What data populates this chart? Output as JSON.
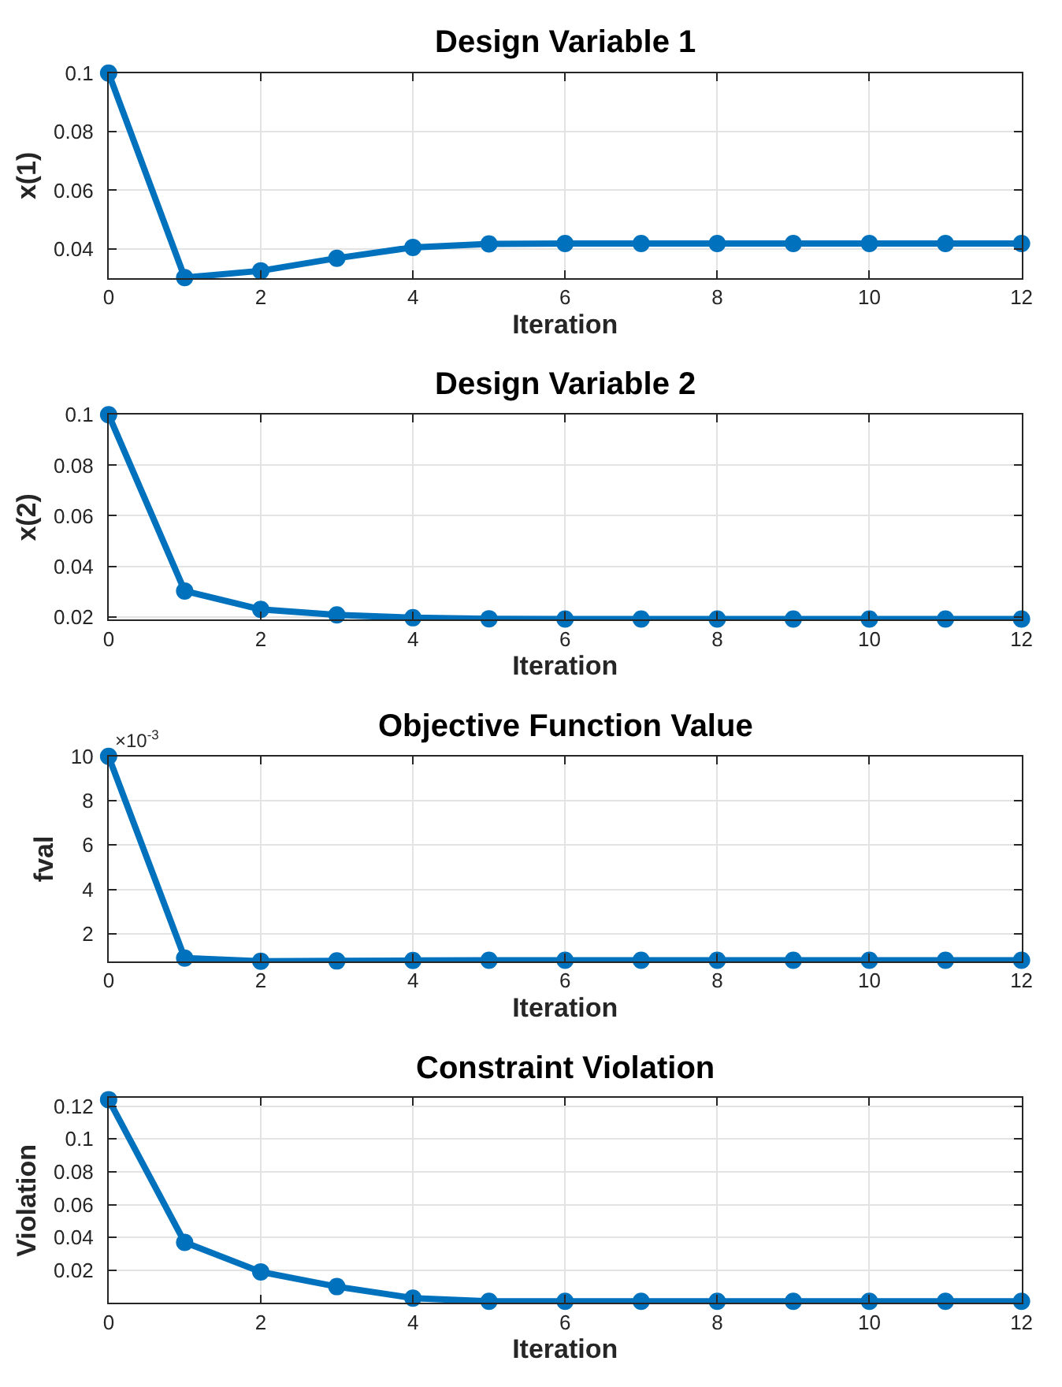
{
  "chart_data": [
    {
      "type": "line",
      "title": "Design Variable 1",
      "xlabel": "Iteration",
      "ylabel": "x(1)",
      "x": [
        0,
        1,
        2,
        3,
        4,
        5,
        6,
        7,
        8,
        9,
        10,
        11,
        12
      ],
      "color": "#0072bd",
      "marker": "circle",
      "grid": true,
      "values": [
        0.1,
        0.0302,
        0.0325,
        0.0368,
        0.0405,
        0.0417,
        0.0418,
        0.0418,
        0.0418,
        0.0418,
        0.0418,
        0.0418,
        0.0418
      ],
      "xlim": [
        0,
        12
      ],
      "xticks": [
        0,
        2,
        4,
        6,
        8,
        10,
        12
      ],
      "ylim": [
        0.03,
        0.1
      ],
      "yticks": [
        0.04,
        0.06,
        0.08,
        0.1
      ]
    },
    {
      "type": "line",
      "title": "Design Variable 2",
      "xlabel": "Iteration",
      "ylabel": "x(2)",
      "x": [
        0,
        1,
        2,
        3,
        4,
        5,
        6,
        7,
        8,
        9,
        10,
        11,
        12
      ],
      "color": "#0072bd",
      "marker": "circle",
      "grid": true,
      "values": [
        0.1,
        0.0302,
        0.0229,
        0.0207,
        0.0196,
        0.0192,
        0.0191,
        0.0191,
        0.0191,
        0.0191,
        0.0191,
        0.0191,
        0.0191
      ],
      "xlim": [
        0,
        12
      ],
      "xticks": [
        0,
        2,
        4,
        6,
        8,
        10,
        12
      ],
      "ylim": [
        0.0188,
        0.1
      ],
      "yticks": [
        0.02,
        0.04,
        0.06,
        0.08,
        0.1
      ]
    },
    {
      "type": "line",
      "title": "Objective Function Value",
      "xlabel": "Iteration",
      "ylabel": "fval",
      "x": [
        0,
        1,
        2,
        3,
        4,
        5,
        6,
        7,
        8,
        9,
        10,
        11,
        12
      ],
      "color": "#0072bd",
      "marker": "circle",
      "grid": true,
      "values": [
        10,
        0.9,
        0.76,
        0.77,
        0.79,
        0.8,
        0.8,
        0.8,
        0.8,
        0.8,
        0.8,
        0.8,
        0.8
      ],
      "xlim": [
        0,
        12
      ],
      "xticks": [
        0,
        2,
        4,
        6,
        8,
        10,
        12
      ],
      "ylim": [
        0.75,
        10
      ],
      "yticks": [
        2,
        4,
        6,
        8,
        10
      ],
      "annotations": [
        "×10$^{-3}$"
      ]
    },
    {
      "type": "line",
      "title": "Constraint Violation",
      "xlabel": "Iteration",
      "ylabel": "Violation",
      "x": [
        0,
        1,
        2,
        3,
        4,
        5,
        6,
        7,
        8,
        9,
        10,
        11,
        12
      ],
      "color": "#0072bd",
      "marker": "circle",
      "grid": true,
      "values": [
        0.124,
        0.037,
        0.019,
        0.01,
        0.003,
        0.001,
        0.001,
        0.001,
        0.001,
        0.001,
        0.001,
        0.001,
        0.001
      ],
      "xlim": [
        0,
        12
      ],
      "xticks": [
        0,
        2,
        4,
        6,
        8,
        10,
        12
      ],
      "ylim": [
        0,
        0.125
      ],
      "yticks": [
        0.02,
        0.04,
        0.06,
        0.08,
        0.1,
        0.12
      ]
    }
  ]
}
